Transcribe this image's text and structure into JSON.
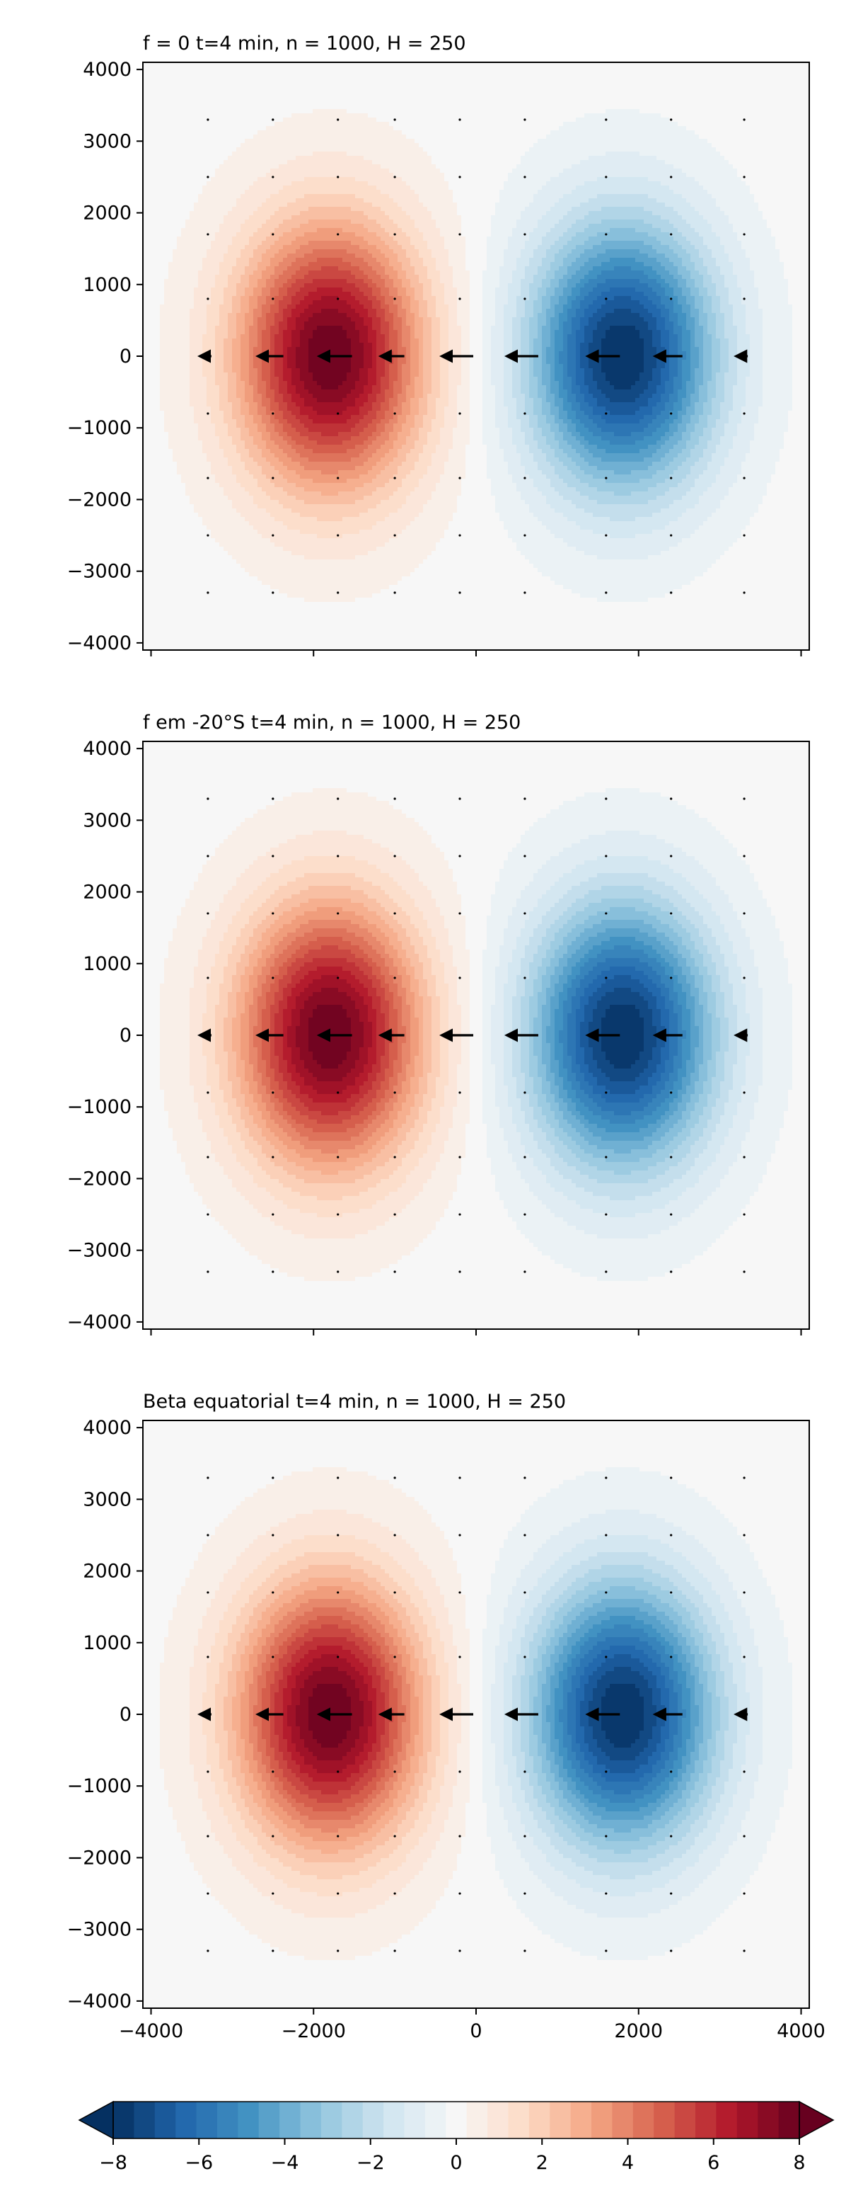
{
  "chart_data": [
    {
      "type": "heatmap",
      "title": "f = 0 t=4 min, n = 1000, H = 250",
      "xlim": [
        -4100,
        4100
      ],
      "ylim": [
        -4100,
        4100
      ],
      "xticks": [
        -4000,
        -2000,
        0,
        2000,
        4000
      ],
      "yticks": [
        4000,
        3000,
        2000,
        1000,
        0,
        -1000,
        -2000,
        -3000,
        -4000
      ],
      "show_xtick_labels": false,
      "field": {
        "positive_center": [
          -1800,
          0
        ],
        "negative_center": [
          1800,
          0
        ],
        "amplitude": 8
      },
      "vectors": {
        "direction": "west",
        "x_positions": [
          -3300,
          -2500,
          -1700,
          -1000,
          -200,
          600,
          1600,
          2400,
          3300
        ],
        "row": 0
      }
    },
    {
      "type": "heatmap",
      "title": "f em -20°S t=4 min, n = 1000, H = 250",
      "xlim": [
        -4100,
        4100
      ],
      "ylim": [
        -4100,
        4100
      ],
      "xticks": [
        -4000,
        -2000,
        0,
        2000,
        4000
      ],
      "yticks": [
        4000,
        3000,
        2000,
        1000,
        0,
        -1000,
        -2000,
        -3000,
        -4000
      ],
      "show_xtick_labels": false,
      "field": {
        "positive_center": [
          -1800,
          0
        ],
        "negative_center": [
          1800,
          0
        ],
        "amplitude": 8
      },
      "vectors": {
        "direction": "west",
        "x_positions": [
          -3300,
          -2500,
          -1700,
          -1000,
          -200,
          600,
          1600,
          2400,
          3300
        ],
        "row": 0
      }
    },
    {
      "type": "heatmap",
      "title": "Beta equatorial t=4 min, n = 1000, H = 250",
      "xlim": [
        -4100,
        4100
      ],
      "ylim": [
        -4100,
        4100
      ],
      "xticks": [
        -4000,
        -2000,
        0,
        2000,
        4000
      ],
      "yticks": [
        4000,
        3000,
        2000,
        1000,
        0,
        -1000,
        -2000,
        -3000,
        -4000
      ],
      "show_xtick_labels": true,
      "field": {
        "positive_center": [
          -1800,
          0
        ],
        "negative_center": [
          1800,
          0
        ],
        "amplitude": 8
      },
      "vectors": {
        "direction": "west",
        "x_positions": [
          -3300,
          -2500,
          -1700,
          -1000,
          -200,
          600,
          1600,
          2400,
          3300
        ],
        "row": 0
      }
    }
  ],
  "colorbar": {
    "range": [
      -8,
      8
    ],
    "ticks": [
      -8,
      -6,
      -4,
      -2,
      0,
      2,
      4,
      6,
      8
    ],
    "extend": "both",
    "levels": 33,
    "colormap": "RdBu_r",
    "stops": [
      "#053061",
      "#2166ac",
      "#4393c3",
      "#92c5de",
      "#d1e5f0",
      "#f7f7f7",
      "#fddbc7",
      "#f4a582",
      "#d6604d",
      "#b2182b",
      "#67001f"
    ]
  }
}
